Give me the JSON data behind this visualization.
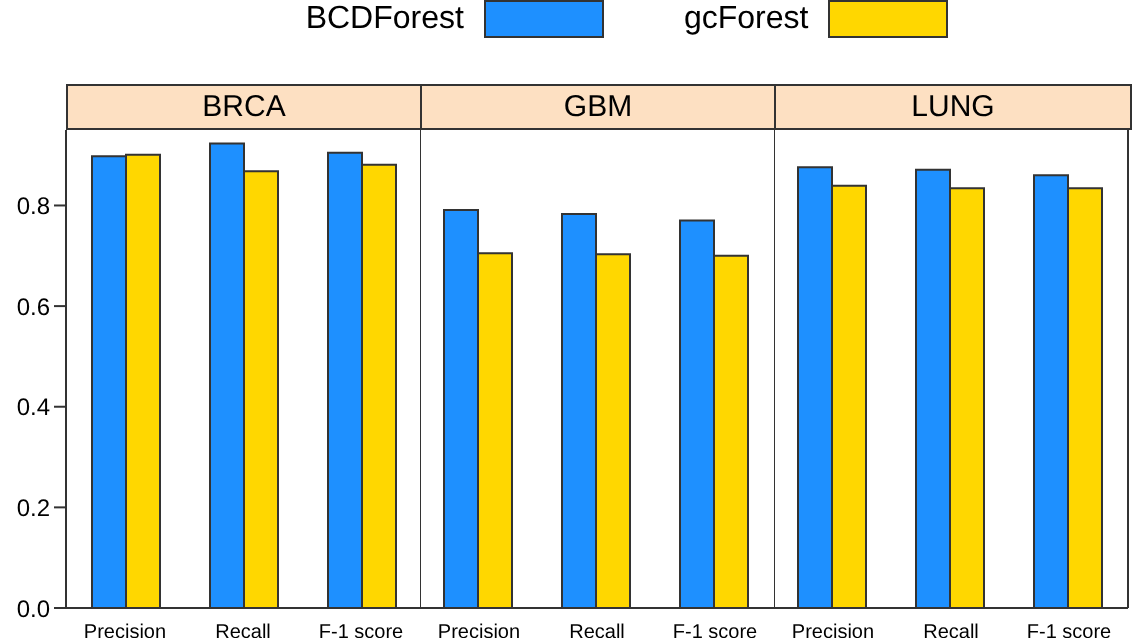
{
  "chart_data": [
    {
      "type": "bar",
      "title": "BRCA",
      "categories": [
        "Precision",
        "Recall",
        "F-1 score"
      ],
      "series": [
        {
          "name": "BCDForest",
          "color": "#1e90ff",
          "values": [
            0.898,
            0.923,
            0.905
          ]
        },
        {
          "name": "gcForest",
          "color": "#ffd700",
          "values": [
            0.901,
            0.868,
            0.881
          ]
        }
      ],
      "ylim": [
        0,
        0.95
      ],
      "yticks": [
        {
          "value": 0,
          "label": "0.0"
        },
        0.2,
        0.4,
        0.6,
        0.8
      ],
      "legend": "top"
    },
    {
      "type": "bar",
      "title": "GBM",
      "categories": [
        "Precision",
        "Recall",
        "F-1 score"
      ],
      "series": [
        {
          "color": "#1e90ff",
          "values": [
            0.791,
            0.783,
            0.77
          ]
        },
        {
          "color": "#ffd700",
          "values": [
            0.705,
            0.703,
            0.7
          ]
        }
      ],
      "ylim": [
        0,
        0.95
      ],
      "tick_labels": "x"
    },
    {
      "type": "bar",
      "title": "LUNG",
      "categories": [
        "Precision",
        "Recall",
        "F-1 score"
      ],
      "series": [
        {
          "color": "#1e90ff",
          "values": [
            0.876,
            0.871,
            0.86
          ]
        },
        {
          "color": "#ffd700",
          "values": [
            0.839,
            0.834,
            0.834
          ]
        }
      ],
      "ylim": [
        0,
        0.95
      ],
      "tick_labels": "x"
    }
  ]
}
